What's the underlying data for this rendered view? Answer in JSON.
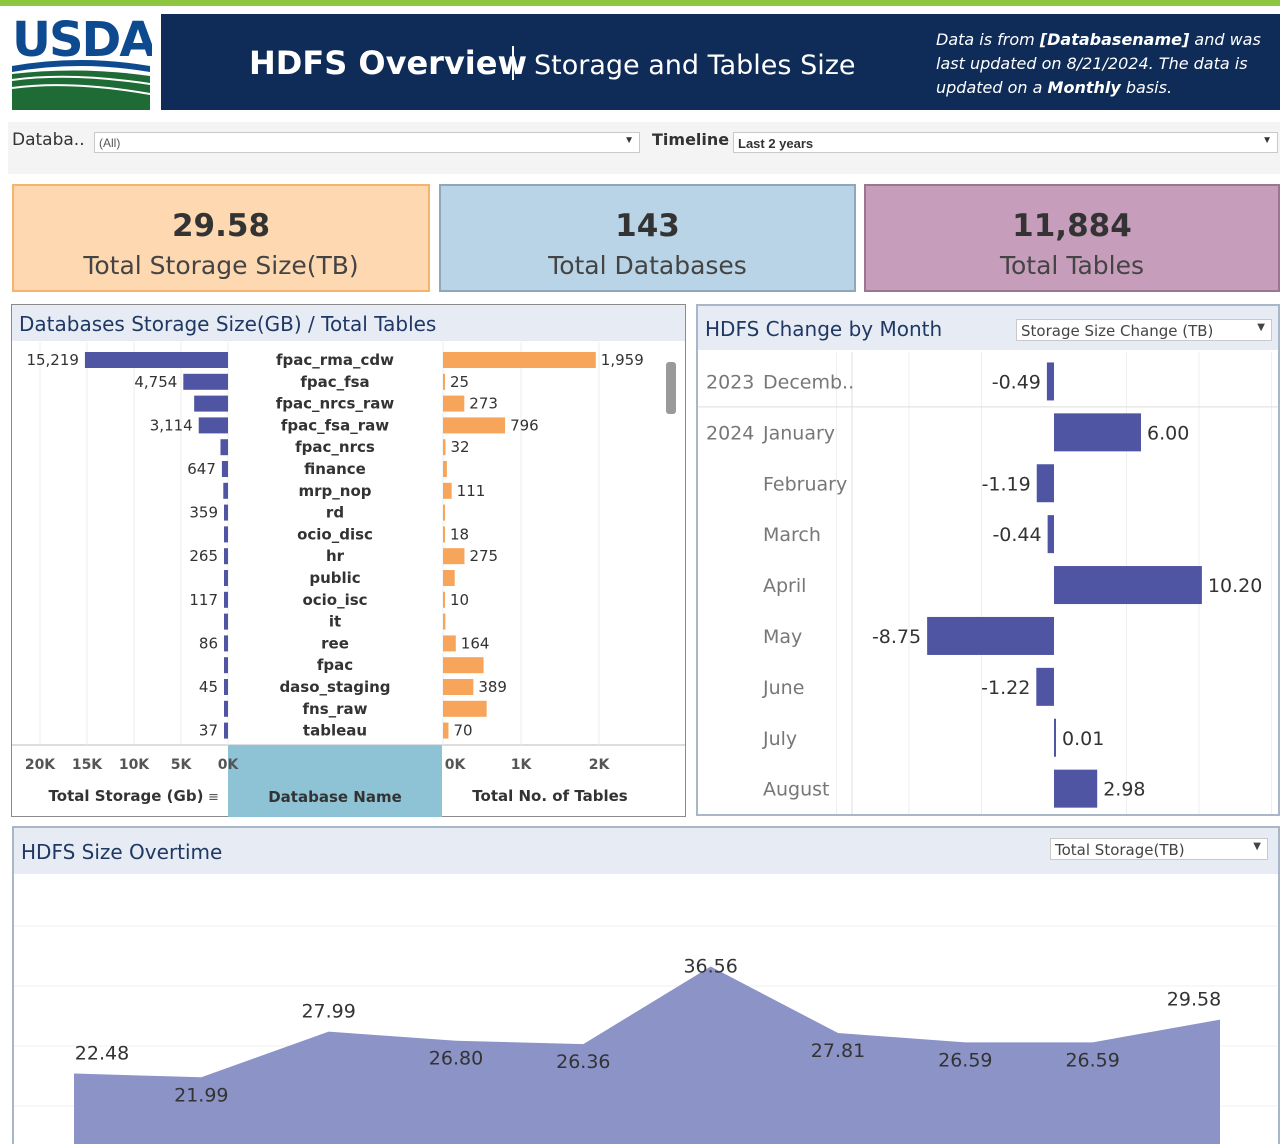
{
  "header": {
    "logo_text": "USDA",
    "title": "HDFS Overview",
    "subtitle": "Storage and Tables Size",
    "note_prefix": "Data is from ",
    "note_db": "[Databasename]",
    "note_mid": " and was last updated on 8/21/2024. The data is updated on a ",
    "note_freq": "Monthly",
    "note_suffix": " basis."
  },
  "filters": {
    "database_label": "Databa..",
    "database_value": "(All)",
    "timeline_label": "Timeline",
    "timeline_value": "Last 2 years"
  },
  "kpis": {
    "storage": {
      "value": "29.58",
      "label": "Total Storage Size(TB)"
    },
    "databases": {
      "value": "143",
      "label": "Total Databases"
    },
    "tables": {
      "value": "11,884",
      "label": "Total Tables"
    }
  },
  "colors": {
    "navy": "#0e2c57",
    "storage_bar": "#4f55a3",
    "tables_bar": "#f6a55a",
    "area_fill": "#8b93c7",
    "kpi_storage": "#fdd8b0",
    "kpi_databases": "#b8d4e6",
    "kpi_tables": "#c79dbc",
    "accent_green": "#8dc63f"
  },
  "db_panel": {
    "title": "Databases Storage Size(GB) / Total Tables",
    "storage_axis_title": "Total Storage (Gb)",
    "name_axis_title": "Database  Name",
    "tables_axis_title": "Total No. of Tables"
  },
  "month_panel": {
    "title": "HDFS Change by Month",
    "dropdown": "Storage Size Change (TB)"
  },
  "overtime_panel": {
    "title": "HDFS Size Overtime",
    "dropdown": "Total Storage(TB)"
  },
  "chart_data": [
    {
      "type": "bar",
      "name_key": "storage",
      "orientation": "horizontal-reversed",
      "categories": [
        "fpac_rma_cdw",
        "fpac_fsa",
        "fpac_nrcs_raw",
        "fpac_fsa_raw",
        "fpac_nrcs",
        "finance",
        "mrp_nop",
        "rd",
        "ocio_disc",
        "hr",
        "public",
        "ocio_isc",
        "it",
        "ree",
        "fpac",
        "daso_staging",
        "fns_raw",
        "tableau"
      ],
      "values": [
        15219,
        4754,
        3600,
        3114,
        800,
        647,
        500,
        359,
        300,
        265,
        200,
        117,
        100,
        86,
        60,
        45,
        40,
        37
      ],
      "labels": [
        "15,219",
        "4,754",
        "",
        "3,114",
        "",
        "647",
        "",
        "359",
        "",
        "265",
        "",
        "117",
        "",
        "86",
        "",
        "45",
        "",
        "37"
      ],
      "ticks": [
        "20K",
        "15K",
        "10K",
        "5K",
        "0K"
      ],
      "xlim": [
        0,
        20000
      ]
    },
    {
      "type": "bar",
      "name_key": "tables",
      "orientation": "horizontal",
      "categories": [
        "fpac_rma_cdw",
        "fpac_fsa",
        "fpac_nrcs_raw",
        "fpac_fsa_raw",
        "fpac_nrcs",
        "finance",
        "mrp_nop",
        "rd",
        "ocio_disc",
        "hr",
        "public",
        "ocio_isc",
        "it",
        "ree",
        "fpac",
        "daso_staging",
        "fns_raw",
        "tableau"
      ],
      "values": [
        1959,
        25,
        273,
        796,
        32,
        50,
        111,
        8,
        18,
        275,
        150,
        10,
        30,
        164,
        520,
        389,
        560,
        70
      ],
      "labels": [
        "1,959",
        "25",
        "273",
        "796",
        "32",
        "",
        "111",
        "",
        "18",
        "275",
        "",
        "10",
        "",
        "164",
        "",
        "389",
        "",
        "70"
      ],
      "ticks": [
        "0K",
        "1K",
        "2K"
      ],
      "xlim": [
        0,
        2500
      ]
    },
    {
      "type": "bar",
      "name_key": "monthly_change",
      "orientation": "horizontal-diverging",
      "years": [
        "2023",
        "2024",
        "",
        "",
        "",
        "",
        "",
        "",
        ""
      ],
      "categories": [
        "Decemb..",
        "January",
        "February",
        "March",
        "April",
        "May",
        "June",
        "July",
        "August"
      ],
      "values": [
        -0.49,
        6.0,
        -1.19,
        -0.44,
        10.2,
        -8.75,
        -1.22,
        0.01,
        2.98
      ],
      "labels": [
        "-0.49",
        "6.00",
        "-1.19",
        "-0.44",
        "10.20",
        "-8.75",
        "-1.22",
        "0.01",
        "2.98"
      ]
    },
    {
      "type": "area",
      "name_key": "size_overtime",
      "values": [
        22.48,
        21.99,
        27.99,
        26.8,
        26.36,
        36.56,
        27.81,
        26.59,
        26.59,
        29.58
      ],
      "labels": [
        "22.48",
        "21.99",
        "27.99",
        "26.80",
        "26.36",
        "36.56",
        "27.81",
        "26.59",
        "26.59",
        "29.58"
      ]
    }
  ]
}
